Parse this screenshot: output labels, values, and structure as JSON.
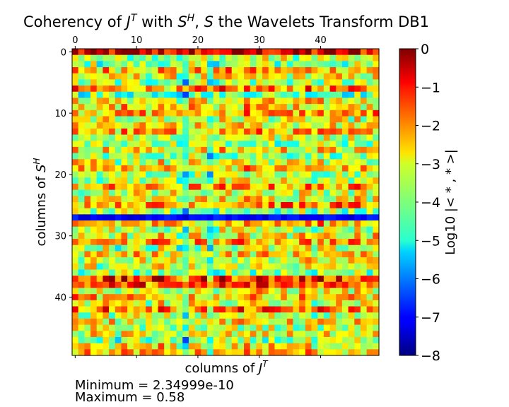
{
  "title_parts": [
    "Coherency of ",
    "J",
    "T",
    " with ",
    "S",
    "H",
    ", ",
    "S",
    " the Wavelets Transform DB1"
  ],
  "chart_data": {
    "type": "heatmap",
    "title": "Coherency of J^T with S^H, S the Wavelets Transform DB1",
    "xlabel": "columns of J^T",
    "ylabel": "columns of S^H",
    "n_cols": 50,
    "n_rows": 50,
    "x_ticks": [
      0,
      10,
      20,
      30,
      40
    ],
    "y_ticks": [
      0,
      10,
      20,
      30,
      40
    ],
    "x_axis_position": "top",
    "colorbar": {
      "label": "Log10 |< * , * >|",
      "range": [
        -8,
        0
      ],
      "ticks": [
        0,
        -1,
        -2,
        -3,
        -4,
        -5,
        -6,
        -7,
        -8
      ],
      "colormap": "jet"
    },
    "row_values": [
      -0.8,
      -3.6,
      -4.0,
      -2.4,
      -3.2,
      -3.8,
      -2.2,
      -4.2,
      -3.0,
      -2.8,
      -2.3,
      -3.4,
      -3.1,
      -2.5,
      -3.3,
      -3.7,
      -3.0,
      -3.9,
      -3.3,
      -2.6,
      -3.8,
      -3.5,
      -2.4,
      -3.3,
      -3.0,
      -2.1,
      -4.0,
      -7.0,
      -2.5,
      -3.5,
      -3.1,
      -2.3,
      -3.6,
      -2.8,
      -3.2,
      -3.4,
      -3.9,
      -1.4,
      -1.6,
      -3.1,
      -2.6,
      -3.3,
      -2.0,
      -3.5,
      -3.0,
      -3.6,
      -3.2,
      -4.1,
      -3.0,
      -2.6
    ],
    "col_offsets": [
      0.3,
      -0.2,
      0.1,
      0.4,
      -0.3,
      0.2,
      0.0,
      -0.4,
      0.3,
      -0.1,
      0.2,
      0.1,
      -0.3,
      0.0,
      0.4,
      -0.2,
      0.1,
      -0.5,
      -1.3,
      0.2,
      0.0,
      0.1,
      -0.9,
      -0.2,
      0.3,
      0.1,
      -0.1,
      0.2,
      0.4,
      0.0,
      0.3,
      0.2,
      0.1,
      -0.2,
      0.4,
      0.0,
      -0.1,
      0.2,
      0.3,
      -0.3,
      0.2,
      0.0,
      0.1,
      0.2,
      -0.2,
      0.0,
      0.3,
      -0.1,
      -0.2,
      0.2
    ],
    "minimum": "Minimum = 2.34999e-10",
    "maximum": "Maximum = 0.58"
  }
}
